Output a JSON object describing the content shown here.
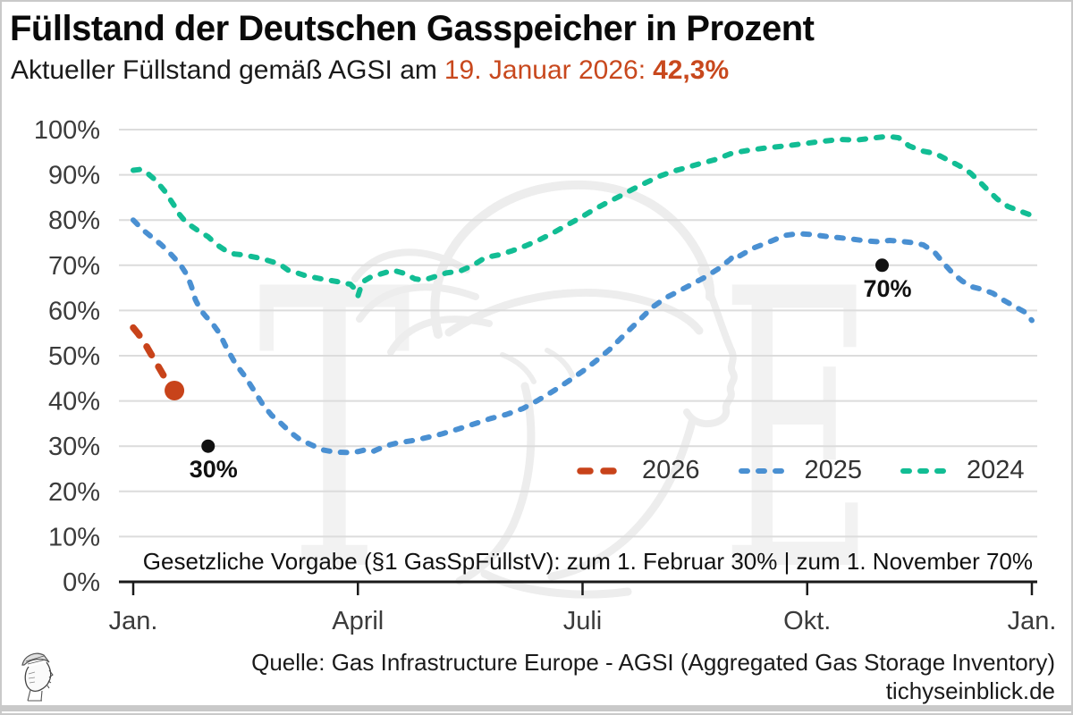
{
  "header": {
    "title": "Füllstand der Deutschen Gasspeicher in Prozent",
    "subtitle_prefix": "Aktueller Füllstand gemäß AGSI am",
    "subtitle_date": "19. Januar 2026:",
    "subtitle_value": "42,3%",
    "accent_color": "#c8481d"
  },
  "regulation_note": "Gesetzliche Vorgabe (§1 GasSpFüllstV): zum 1. Februar 30% | zum 1. November 70%",
  "footer": {
    "source": "Quelle: Gas Infrastructure Europe - AGSI (Aggregated Gas Storage Inventory)",
    "website": "tichyseinblick.de"
  },
  "watermark": {
    "letters": [
      "T",
      "E"
    ]
  },
  "colors": {
    "grid": "#dcdcdc",
    "axis": "#1a1a1a",
    "tick_label": "#3b3b3b",
    "border_bar": "#c9c9c9"
  },
  "chart_data": {
    "type": "line",
    "title": "Füllstand der Deutschen Gasspeicher in Prozent",
    "xlabel": "",
    "ylabel": "",
    "ylim": [
      0,
      100
    ],
    "xlim_months": [
      0,
      12
    ],
    "grid": true,
    "legend_position": "inside-lower-right",
    "y_tick_labels": [
      "0%",
      "10%",
      "20%",
      "30%",
      "40%",
      "50%",
      "60%",
      "70%",
      "80%",
      "90%",
      "100%"
    ],
    "x_tick_labels": [
      "Jan.",
      "April",
      "Juli",
      "Okt.",
      "Jan."
    ],
    "x_tick_months": [
      0,
      3,
      6,
      9,
      12
    ],
    "series": [
      {
        "name": "2026",
        "color": "#c8431a",
        "line_style": "dashed-thick",
        "points": [
          [
            0,
            56.2
          ],
          [
            0.06,
            55.0
          ],
          [
            0.12,
            53.6
          ],
          [
            0.18,
            52.0
          ],
          [
            0.24,
            50.3
          ],
          [
            0.3,
            48.6
          ],
          [
            0.36,
            46.9
          ],
          [
            0.42,
            45.2
          ],
          [
            0.48,
            43.6
          ],
          [
            0.55,
            42.3
          ]
        ]
      },
      {
        "name": "2025",
        "color": "#4a90d2",
        "line_style": "dashed",
        "points": [
          [
            0,
            80.0
          ],
          [
            0.13,
            77.8
          ],
          [
            0.25,
            76.2
          ],
          [
            0.37,
            74.6
          ],
          [
            0.46,
            73.2
          ],
          [
            0.55,
            71.6
          ],
          [
            0.63,
            70.1
          ],
          [
            0.72,
            67.8
          ],
          [
            0.78,
            65.2
          ],
          [
            0.83,
            62.4
          ],
          [
            0.9,
            60.1
          ],
          [
            0.97,
            58.7
          ],
          [
            1.05,
            57.3
          ],
          [
            1.15,
            55.0
          ],
          [
            1.25,
            51.6
          ],
          [
            1.37,
            48.1
          ],
          [
            1.49,
            45.5
          ],
          [
            1.61,
            42.4
          ],
          [
            1.73,
            39.2
          ],
          [
            1.85,
            36.8
          ],
          [
            1.97,
            35.1
          ],
          [
            2.09,
            33.2
          ],
          [
            2.23,
            31.4
          ],
          [
            2.38,
            30.3
          ],
          [
            2.52,
            29.2
          ],
          [
            2.69,
            28.7
          ],
          [
            2.85,
            28.6
          ],
          [
            3.0,
            28.8
          ],
          [
            3.13,
            29.3
          ],
          [
            3.21,
            28.9
          ],
          [
            3.36,
            30.0
          ],
          [
            3.52,
            30.7
          ],
          [
            3.72,
            31.2
          ],
          [
            3.92,
            31.9
          ],
          [
            4.12,
            32.7
          ],
          [
            4.34,
            33.8
          ],
          [
            4.55,
            34.9
          ],
          [
            4.77,
            36.1
          ],
          [
            4.98,
            37.0
          ],
          [
            5.2,
            38.3
          ],
          [
            5.41,
            40.2
          ],
          [
            5.63,
            42.4
          ],
          [
            5.84,
            44.7
          ],
          [
            6.03,
            46.9
          ],
          [
            6.19,
            49.0
          ],
          [
            6.37,
            51.5
          ],
          [
            6.55,
            54.5
          ],
          [
            6.73,
            57.4
          ],
          [
            6.93,
            60.7
          ],
          [
            7.11,
            62.8
          ],
          [
            7.29,
            64.3
          ],
          [
            7.47,
            65.9
          ],
          [
            7.65,
            67.5
          ],
          [
            7.83,
            69.4
          ],
          [
            7.98,
            71.4
          ],
          [
            8.02,
            72.3
          ],
          [
            8.08,
            71.9
          ],
          [
            8.28,
            73.8
          ],
          [
            8.5,
            75.2
          ],
          [
            8.7,
            76.6
          ],
          [
            8.88,
            77.0
          ],
          [
            9.06,
            76.8
          ],
          [
            9.24,
            76.4
          ],
          [
            9.42,
            76.1
          ],
          [
            9.6,
            75.8
          ],
          [
            9.78,
            75.4
          ],
          [
            9.95,
            75.2
          ],
          [
            10.1,
            75.5
          ],
          [
            10.25,
            75.3
          ],
          [
            10.41,
            75.0
          ],
          [
            10.55,
            74.5
          ],
          [
            10.7,
            72.9
          ],
          [
            10.83,
            70.3
          ],
          [
            10.95,
            68.1
          ],
          [
            11.07,
            66.5
          ],
          [
            11.21,
            65.2
          ],
          [
            11.35,
            64.6
          ],
          [
            11.48,
            63.8
          ],
          [
            11.63,
            62.2
          ],
          [
            11.78,
            60.8
          ],
          [
            11.9,
            59.7
          ],
          [
            12,
            57.8
          ]
        ]
      },
      {
        "name": "2024",
        "color": "#12bd94",
        "line_style": "dashed",
        "points": [
          [
            0,
            91.0
          ],
          [
            0.1,
            91.2
          ],
          [
            0.2,
            90.2
          ],
          [
            0.3,
            88.8
          ],
          [
            0.42,
            86.4
          ],
          [
            0.54,
            83.4
          ],
          [
            0.62,
            81.2
          ],
          [
            0.7,
            79.6
          ],
          [
            0.8,
            78.4
          ],
          [
            0.9,
            77.3
          ],
          [
            1.0,
            76.3
          ],
          [
            1.11,
            74.6
          ],
          [
            1.23,
            73.3
          ],
          [
            1.35,
            72.5
          ],
          [
            1.47,
            72.3
          ],
          [
            1.59,
            71.9
          ],
          [
            1.71,
            71.5
          ],
          [
            1.83,
            70.9
          ],
          [
            1.95,
            70.3
          ],
          [
            2.07,
            68.9
          ],
          [
            2.19,
            68.3
          ],
          [
            2.3,
            67.7
          ],
          [
            2.42,
            67.3
          ],
          [
            2.54,
            66.9
          ],
          [
            2.72,
            66.4
          ],
          [
            2.9,
            65.8
          ],
          [
            2.96,
            64.8
          ],
          [
            3.0,
            63.2
          ],
          [
            3.06,
            66.3
          ],
          [
            3.16,
            67.3
          ],
          [
            3.31,
            68.1
          ],
          [
            3.47,
            68.9
          ],
          [
            3.62,
            68.2
          ],
          [
            3.76,
            67.0
          ],
          [
            3.88,
            66.7
          ],
          [
            4.01,
            67.4
          ],
          [
            4.18,
            68.3
          ],
          [
            4.36,
            68.7
          ],
          [
            4.54,
            70.0
          ],
          [
            4.7,
            71.7
          ],
          [
            4.88,
            72.3
          ],
          [
            5.06,
            73.2
          ],
          [
            5.24,
            74.3
          ],
          [
            5.42,
            75.6
          ],
          [
            5.6,
            77.1
          ],
          [
            5.78,
            78.8
          ],
          [
            5.96,
            80.4
          ],
          [
            6.14,
            82.2
          ],
          [
            6.32,
            83.8
          ],
          [
            6.5,
            85.3
          ],
          [
            6.68,
            86.9
          ],
          [
            6.85,
            88.3
          ],
          [
            7.03,
            89.7
          ],
          [
            7.21,
            90.8
          ],
          [
            7.39,
            91.6
          ],
          [
            7.57,
            92.5
          ],
          [
            7.76,
            93.3
          ],
          [
            8.0,
            94.8
          ],
          [
            8.24,
            95.5
          ],
          [
            8.48,
            96.0
          ],
          [
            8.72,
            96.4
          ],
          [
            8.96,
            96.9
          ],
          [
            9.19,
            97.4
          ],
          [
            9.43,
            97.8
          ],
          [
            9.67,
            97.7
          ],
          [
            9.91,
            98.2
          ],
          [
            10.08,
            98.5
          ],
          [
            10.22,
            98.2
          ],
          [
            10.36,
            96.4
          ],
          [
            10.53,
            95.3
          ],
          [
            10.71,
            94.7
          ],
          [
            10.89,
            93.2
          ],
          [
            11.03,
            92.0
          ],
          [
            11.18,
            90.4
          ],
          [
            11.3,
            88.5
          ],
          [
            11.42,
            86.5
          ],
          [
            11.54,
            84.6
          ],
          [
            11.68,
            83.0
          ],
          [
            11.84,
            82.0
          ],
          [
            12,
            81.0
          ]
        ]
      }
    ],
    "markers": [
      {
        "label": "",
        "month": 0.55,
        "value": 42.3,
        "radius": 11,
        "color": "#c8431a"
      },
      {
        "label": "30%",
        "month": 1.0,
        "value": 30,
        "radius": 7.5,
        "color": "#111111"
      },
      {
        "label": "70%",
        "month": 10.0,
        "value": 70,
        "radius": 7.5,
        "color": "#111111"
      }
    ]
  },
  "legend": {
    "items": [
      {
        "label": "2026"
      },
      {
        "label": "2025"
      },
      {
        "label": "2024"
      }
    ]
  }
}
